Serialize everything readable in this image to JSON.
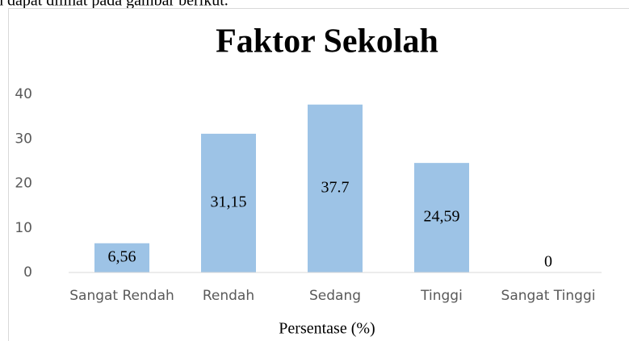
{
  "context_text": "h dapat dilihat pada gambar berikut.",
  "chart_data": {
    "type": "bar",
    "title": "Faktor Sekolah",
    "categories": [
      "Sangat Rendah",
      "Rendah",
      "Sedang",
      "Tinggi",
      "Sangat Tinggi"
    ],
    "values": [
      6.56,
      31.15,
      37.7,
      24.59,
      0
    ],
    "value_labels": [
      "6,56",
      "31,15",
      "37.7",
      "24,59",
      "0"
    ],
    "color": "#9dc3e6",
    "x_label": "Persentase (%)",
    "ylim": [
      0,
      40
    ],
    "yticks": [
      0,
      10,
      20,
      30,
      40
    ],
    "grid": false
  }
}
